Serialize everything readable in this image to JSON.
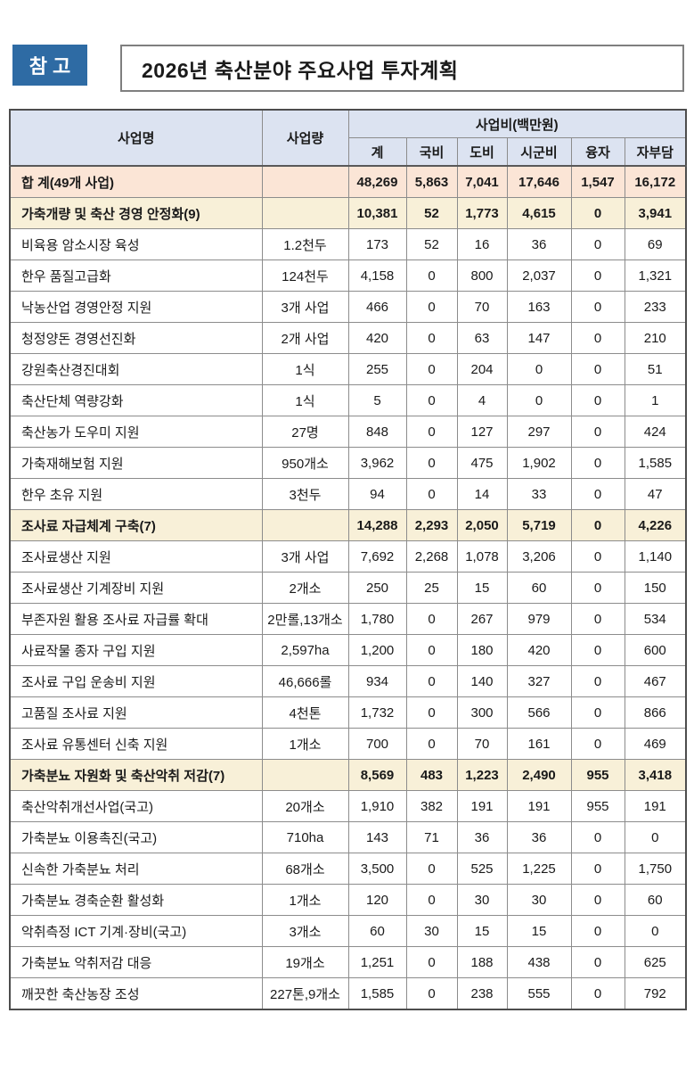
{
  "page": {
    "badge": "참 고",
    "title": "2026년 축산분야 주요사업 투자계획"
  },
  "colors": {
    "badge_blue": "#2E6BA4",
    "table_header_bg": "#DCE3F1",
    "total_row_bg": "#FBE5D6",
    "section_row_bg": "#F8F0D8"
  },
  "table": {
    "header": {
      "name": "사업명",
      "qty": "사업량",
      "cost_group": "사업비(백만원)",
      "cols": [
        "계",
        "국비",
        "도비",
        "시군비",
        "융자",
        "자부담"
      ]
    },
    "rows": [
      {
        "type": "total",
        "name": "합 계(49개 사업)",
        "qty": "",
        "values": [
          "48,269",
          "5,863",
          "7,041",
          "17,646",
          "1,547",
          "16,172"
        ]
      },
      {
        "type": "section",
        "name": "가축개량 및 축산 경영 안정화(9)",
        "qty": "",
        "values": [
          "10,381",
          "52",
          "1,773",
          "4,615",
          "0",
          "3,941"
        ]
      },
      {
        "type": "item",
        "name": "비육용 암소시장 육성",
        "qty": "1.2천두",
        "values": [
          "173",
          "52",
          "16",
          "36",
          "0",
          "69"
        ]
      },
      {
        "type": "item",
        "name": "한우 품질고급화",
        "qty": "124천두",
        "values": [
          "4,158",
          "0",
          "800",
          "2,037",
          "0",
          "1,321"
        ]
      },
      {
        "type": "item",
        "name": "낙농산업 경영안정 지원",
        "qty": "3개 사업",
        "values": [
          "466",
          "0",
          "70",
          "163",
          "0",
          "233"
        ]
      },
      {
        "type": "item",
        "name": "청정양돈 경영선진화",
        "qty": "2개 사업",
        "values": [
          "420",
          "0",
          "63",
          "147",
          "0",
          "210"
        ]
      },
      {
        "type": "item",
        "name": "강원축산경진대회",
        "qty": "1식",
        "values": [
          "255",
          "0",
          "204",
          "0",
          "0",
          "51"
        ]
      },
      {
        "type": "item",
        "name": "축산단체 역량강화",
        "qty": "1식",
        "values": [
          "5",
          "0",
          "4",
          "0",
          "0",
          "1"
        ]
      },
      {
        "type": "item",
        "name": "축산농가 도우미 지원",
        "qty": "27명",
        "values": [
          "848",
          "0",
          "127",
          "297",
          "0",
          "424"
        ]
      },
      {
        "type": "item",
        "name": "가축재해보험 지원",
        "qty": "950개소",
        "values": [
          "3,962",
          "0",
          "475",
          "1,902",
          "0",
          "1,585"
        ]
      },
      {
        "type": "item",
        "name": "한우 초유 지원",
        "qty": "3천두",
        "values": [
          "94",
          "0",
          "14",
          "33",
          "0",
          "47"
        ]
      },
      {
        "type": "section",
        "name": "조사료 자급체계 구축(7)",
        "qty": "",
        "values": [
          "14,288",
          "2,293",
          "2,050",
          "5,719",
          "0",
          "4,226"
        ]
      },
      {
        "type": "item",
        "name": "조사료생산 지원",
        "qty": "3개 사업",
        "values": [
          "7,692",
          "2,268",
          "1,078",
          "3,206",
          "0",
          "1,140"
        ]
      },
      {
        "type": "item",
        "name": "조사료생산 기계장비 지원",
        "qty": "2개소",
        "values": [
          "250",
          "25",
          "15",
          "60",
          "0",
          "150"
        ]
      },
      {
        "type": "item",
        "name": "부존자원 활용 조사료 자급률 확대",
        "qty": "2만롤,13개소",
        "values": [
          "1,780",
          "0",
          "267",
          "979",
          "0",
          "534"
        ]
      },
      {
        "type": "item",
        "name": "사료작물 종자 구입 지원",
        "qty": "2,597ha",
        "values": [
          "1,200",
          "0",
          "180",
          "420",
          "0",
          "600"
        ]
      },
      {
        "type": "item",
        "name": "조사료 구입 운송비 지원",
        "qty": "46,666롤",
        "values": [
          "934",
          "0",
          "140",
          "327",
          "0",
          "467"
        ]
      },
      {
        "type": "item",
        "name": "고품질 조사료 지원",
        "qty": "4천톤",
        "values": [
          "1,732",
          "0",
          "300",
          "566",
          "0",
          "866"
        ]
      },
      {
        "type": "item",
        "name": "조사료 유통센터 신축 지원",
        "qty": "1개소",
        "values": [
          "700",
          "0",
          "70",
          "161",
          "0",
          "469"
        ]
      },
      {
        "type": "section",
        "name": "가축분뇨 자원화 및 축산악취 저감(7)",
        "qty": "",
        "values": [
          "8,569",
          "483",
          "1,223",
          "2,490",
          "955",
          "3,418"
        ]
      },
      {
        "type": "item",
        "name": "축산악취개선사업(국고)",
        "qty": "20개소",
        "values": [
          "1,910",
          "382",
          "191",
          "191",
          "955",
          "191"
        ]
      },
      {
        "type": "item",
        "name": "가축분뇨 이용촉진(국고)",
        "qty": "710ha",
        "values": [
          "143",
          "71",
          "36",
          "36",
          "0",
          "0"
        ]
      },
      {
        "type": "item",
        "name": "신속한 가축분뇨 처리",
        "qty": "68개소",
        "values": [
          "3,500",
          "0",
          "525",
          "1,225",
          "0",
          "1,750"
        ]
      },
      {
        "type": "item",
        "name": "가축분뇨 경축순환 활성화",
        "qty": "1개소",
        "values": [
          "120",
          "0",
          "30",
          "30",
          "0",
          "60"
        ]
      },
      {
        "type": "item",
        "name": "악취측정 ICT 기계·장비(국고)",
        "qty": "3개소",
        "values": [
          "60",
          "30",
          "15",
          "15",
          "0",
          "0"
        ]
      },
      {
        "type": "item",
        "name": "가축분뇨 악취저감 대응",
        "qty": "19개소",
        "values": [
          "1,251",
          "0",
          "188",
          "438",
          "0",
          "625"
        ]
      },
      {
        "type": "item",
        "name": "깨끗한 축산농장 조성",
        "qty": "227톤,9개소",
        "values": [
          "1,585",
          "0",
          "238",
          "555",
          "0",
          "792"
        ]
      }
    ]
  }
}
